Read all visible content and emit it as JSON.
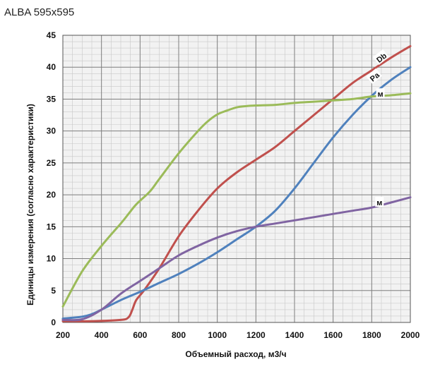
{
  "chart_data": {
    "type": "line",
    "title": "ALBA 595x595",
    "xlabel": "Объемный расход, м3/ч",
    "ylabel": "Единицы измерения (согласно характеристики)",
    "xlim": [
      200,
      2000
    ],
    "ylim": [
      0,
      45
    ],
    "xticks": [
      200,
      400,
      600,
      800,
      1000,
      1200,
      1400,
      1600,
      1800,
      2000
    ],
    "yticks": [
      0,
      5,
      10,
      15,
      20,
      25,
      30,
      35,
      40,
      45
    ],
    "minor_x_step": 50,
    "minor_y_step": 1,
    "grid": true,
    "series": [
      {
        "name": "Db",
        "color": "#c0504d",
        "x": [
          200,
          350,
          500,
          540,
          560,
          580,
          620,
          700,
          800,
          900,
          1000,
          1100,
          1200,
          1300,
          1400,
          1500,
          1600,
          1700,
          1800,
          1900,
          2000
        ],
        "y": [
          0.2,
          0.2,
          0.4,
          0.8,
          2.0,
          3.5,
          5.0,
          8.5,
          13.5,
          17.5,
          21.0,
          23.5,
          25.5,
          27.5,
          30.0,
          32.5,
          35.0,
          37.5,
          39.5,
          41.5,
          43.3
        ]
      },
      {
        "name": "Pa",
        "color": "#4f81bd",
        "x": [
          200,
          300,
          350,
          400,
          500,
          600,
          700,
          800,
          900,
          1000,
          1100,
          1200,
          1300,
          1400,
          1500,
          1600,
          1700,
          1800,
          1900,
          2000
        ],
        "y": [
          0.6,
          0.9,
          1.3,
          2.0,
          3.5,
          4.8,
          6.2,
          7.6,
          9.2,
          11.0,
          13.0,
          15.0,
          17.5,
          21.0,
          25.0,
          29.0,
          32.5,
          35.5,
          38.0,
          40.0
        ]
      },
      {
        "name": "м",
        "color": "#9bbb59",
        "x": [
          200,
          300,
          400,
          500,
          540,
          580,
          650,
          700,
          800,
          900,
          950,
          1000,
          1050,
          1100,
          1150,
          1200,
          1300,
          1400,
          1500,
          1600,
          1700,
          1800,
          1900,
          2000
        ],
        "y": [
          2.5,
          8.0,
          12.0,
          15.5,
          17.0,
          18.5,
          20.5,
          22.5,
          26.5,
          30.0,
          31.5,
          32.6,
          33.2,
          33.7,
          33.9,
          34.0,
          34.1,
          34.4,
          34.6,
          34.8,
          35.0,
          35.4,
          35.6,
          35.9
        ]
      },
      {
        "name": "м",
        "color": "#8064a2",
        "x": [
          200,
          300,
          400,
          500,
          600,
          700,
          800,
          900,
          1000,
          1100,
          1200,
          1300,
          1400,
          1500,
          1600,
          1700,
          1800,
          1900,
          2000
        ],
        "y": [
          0.4,
          0.5,
          2.0,
          4.5,
          6.5,
          8.5,
          10.5,
          12.0,
          13.3,
          14.3,
          15.0,
          15.5,
          16.0,
          16.5,
          17.0,
          17.5,
          18.0,
          18.8,
          19.6
        ]
      }
    ]
  }
}
